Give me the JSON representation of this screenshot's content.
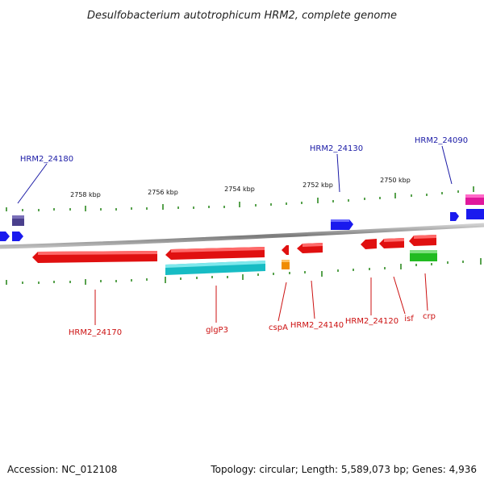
{
  "title": "Desulfobacterium autotrophicum HRM2, complete genome",
  "footer": {
    "accession": "Accession: NC_012108",
    "summary": "Topology: circular; Length: 5,589,073 bp; Genes: 4,936"
  },
  "scale": {
    "tick_labels": [
      "2758 kbp",
      "2756 kbp",
      "2754 kbp",
      "2752 kbp",
      "2750 kbp"
    ]
  },
  "colors": {
    "backbone": "#8a8a8a",
    "tick": "#2e8b22",
    "plus_label": "#1a1aa6",
    "minus_label": "#cc1111",
    "red_gene": "#e01010",
    "blue_gene": "#1a1aee",
    "cyan_gene": "#17bcc4",
    "green_gene": "#22bb22",
    "orange_gene": "#f08c00",
    "magenta_gene": "#e0189c",
    "navy_gene": "#4a3f8c"
  },
  "genes": {
    "plus_strand": [
      "HRM2_24180",
      "HRM2_24130",
      "HRM2_24090"
    ],
    "minus_strand": [
      "HRM2_24170",
      "glgP3",
      "cspA",
      "HRM2_24140",
      "HRM2_24120",
      "isf",
      "crp"
    ]
  }
}
